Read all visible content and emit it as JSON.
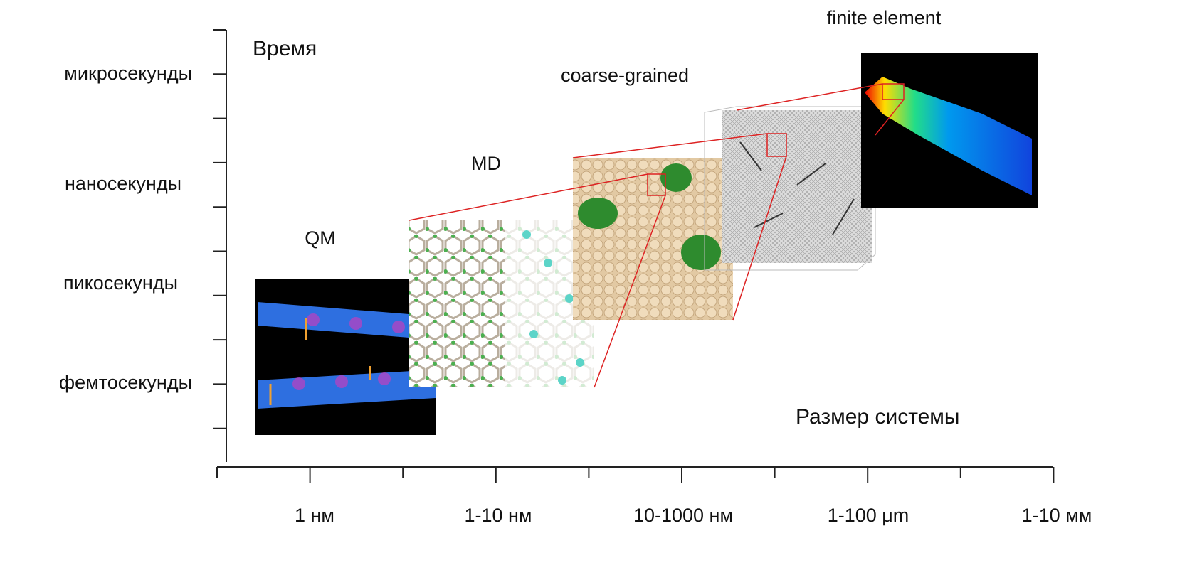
{
  "axes": {
    "y_title": "Время",
    "x_title": "Размер системы",
    "y_labels": [
      "микросекунды",
      "наносекунды",
      "пикосекунды",
      "фемтосекунды"
    ],
    "x_labels": [
      "1 нм",
      "1-10 нм",
      "10-1000 нм",
      "1-100 μm",
      "1-10 мм"
    ]
  },
  "methods": [
    "QM",
    "MD",
    "coarse-grained",
    "finite element"
  ]
}
